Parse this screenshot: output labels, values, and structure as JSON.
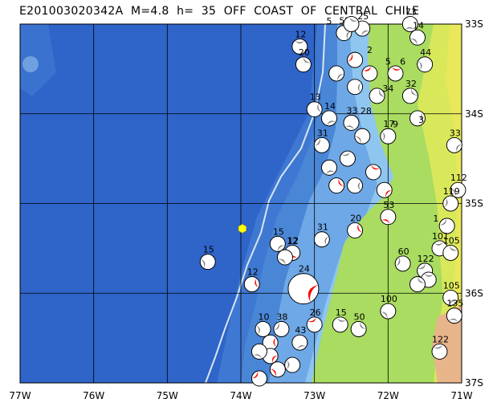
{
  "header": {
    "title": "E201003020342A  M=4.8  h=  35  OFF  COAST  OF  CENTRAL  CHILE"
  },
  "axes": {
    "lon_labels": [
      "77W",
      "76W",
      "75W",
      "74W",
      "73W",
      "72W",
      "71W"
    ],
    "lat_labels": [
      "33S",
      "34S",
      "35S",
      "36S",
      "37S"
    ]
  },
  "colors": {
    "deep_ocean": "#2f64c8",
    "shelf": "#4a86d6",
    "shallow": "#8ec6ef",
    "coast_lowland": "#a9dc60",
    "highland": "#e8e85a",
    "mountain": "#e8b48a",
    "compression": "#ff0000",
    "mechanism_alt": "#808080",
    "epicenter": "#ffff00",
    "trench_line": "#d8e4f4"
  },
  "epicenter": {
    "lon": -73.98,
    "lat": -35.28,
    "depth": "35"
  },
  "events": [
    {
      "lon": -73.2,
      "lat": -33.25,
      "depth": "12",
      "fill": "gray"
    },
    {
      "lon": -73.15,
      "lat": -33.45,
      "depth": "20",
      "fill": "gray"
    },
    {
      "lon": -73.0,
      "lat": -33.95,
      "depth": "13",
      "fill": "gray"
    },
    {
      "lon": -72.6,
      "lat": -33.1,
      "depth": "52",
      "fill": "gray"
    },
    {
      "lon": -72.35,
      "lat": -33.05,
      "depth": "25",
      "fill": "gray"
    },
    {
      "lon": -71.7,
      "lat": -33.0,
      "depth": "73",
      "fill": "gray"
    },
    {
      "lon": -71.6,
      "lat": -33.15,
      "depth": "14",
      "fill": "gray"
    },
    {
      "lon": -71.5,
      "lat": -33.45,
      "depth": "44",
      "fill": "gray"
    },
    {
      "lon": -72.45,
      "lat": -33.4,
      "depth": "",
      "fill": "red"
    },
    {
      "lon": -72.25,
      "lat": -33.55,
      "depth": "",
      "fill": "red"
    },
    {
      "lon": -71.9,
      "lat": -33.55,
      "depth": "",
      "fill": "red"
    },
    {
      "lon": -71.7,
      "lat": -33.8,
      "depth": "32",
      "fill": "gray"
    },
    {
      "lon": -71.6,
      "lat": -34.05,
      "depth": "",
      "fill": "gray"
    },
    {
      "lon": -71.1,
      "lat": -34.35,
      "depth": "33",
      "fill": "gray"
    },
    {
      "lon": -72.8,
      "lat": -34.05,
      "depth": "14",
      "fill": "gray"
    },
    {
      "lon": -72.5,
      "lat": -34.1,
      "depth": "33",
      "fill": "gray"
    },
    {
      "lon": -72.35,
      "lat": -34.25,
      "depth": "",
      "fill": "gray"
    },
    {
      "lon": -72.0,
      "lat": -34.25,
      "depth": "17",
      "fill": "gray"
    },
    {
      "lon": -72.9,
      "lat": -34.35,
      "depth": "31",
      "fill": "gray"
    },
    {
      "lon": -72.55,
      "lat": -34.5,
      "depth": "",
      "fill": "gray"
    },
    {
      "lon": -72.2,
      "lat": -34.65,
      "depth": "",
      "fill": "red"
    },
    {
      "lon": -72.7,
      "lat": -34.8,
      "depth": "",
      "fill": "red"
    },
    {
      "lon": -72.45,
      "lat": -34.8,
      "depth": "",
      "fill": "gray"
    },
    {
      "lon": -72.05,
      "lat": -34.85,
      "depth": "",
      "fill": "red"
    },
    {
      "lon": -72.8,
      "lat": -34.6,
      "depth": "",
      "fill": "gray"
    },
    {
      "lon": -72.0,
      "lat": -35.15,
      "depth": "53",
      "fill": "red"
    },
    {
      "lon": -71.05,
      "lat": -34.85,
      "depth": "112",
      "fill": "gray"
    },
    {
      "lon": -71.15,
      "lat": -35.0,
      "depth": "119",
      "fill": "gray"
    },
    {
      "lon": -71.2,
      "lat": -35.25,
      "depth": "",
      "fill": "gray"
    },
    {
      "lon": -71.3,
      "lat": -35.5,
      "depth": "101",
      "fill": "gray"
    },
    {
      "lon": -71.15,
      "lat": -35.55,
      "depth": "105",
      "fill": "gray"
    },
    {
      "lon": -72.45,
      "lat": -35.3,
      "depth": "20",
      "fill": "red"
    },
    {
      "lon": -72.9,
      "lat": -35.4,
      "depth": "31",
      "fill": "gray"
    },
    {
      "lon": -73.5,
      "lat": -35.45,
      "depth": "15",
      "fill": "gray"
    },
    {
      "lon": -73.3,
      "lat": -35.55,
      "depth": "12",
      "fill": "red"
    },
    {
      "lon": -73.4,
      "lat": -35.6,
      "depth": "",
      "fill": "gray"
    },
    {
      "lon": -74.45,
      "lat": -35.65,
      "depth": "15",
      "fill": "gray"
    },
    {
      "lon": -71.8,
      "lat": -35.67,
      "depth": "60",
      "fill": "gray"
    },
    {
      "lon": -71.5,
      "lat": -35.75,
      "depth": "122",
      "fill": "gray"
    },
    {
      "lon": -71.45,
      "lat": -35.85,
      "depth": "",
      "fill": "gray"
    },
    {
      "lon": -71.6,
      "lat": -35.9,
      "depth": "",
      "fill": "gray"
    },
    {
      "lon": -73.85,
      "lat": -35.9,
      "depth": "12",
      "fill": "red"
    },
    {
      "lon": -73.15,
      "lat": -35.95,
      "depth": "24",
      "fill": "red",
      "big": true
    },
    {
      "lon": -71.15,
      "lat": -36.05,
      "depth": "105",
      "fill": "gray"
    },
    {
      "lon": -71.1,
      "lat": -36.25,
      "depth": "135",
      "fill": "gray"
    },
    {
      "lon": -72.0,
      "lat": -36.2,
      "depth": "100",
      "fill": "gray"
    },
    {
      "lon": -73.7,
      "lat": -36.4,
      "depth": "10",
      "fill": "gray"
    },
    {
      "lon": -73.45,
      "lat": -36.4,
      "depth": "38",
      "fill": "gray"
    },
    {
      "lon": -73.0,
      "lat": -36.35,
      "depth": "26",
      "fill": "red"
    },
    {
      "lon": -72.65,
      "lat": -36.35,
      "depth": "15",
      "fill": "gray"
    },
    {
      "lon": -72.4,
      "lat": -36.4,
      "depth": "50",
      "fill": "gray"
    },
    {
      "lon": -73.6,
      "lat": -36.55,
      "depth": "",
      "fill": "red"
    },
    {
      "lon": -73.6,
      "lat": -36.7,
      "depth": "",
      "fill": "red"
    },
    {
      "lon": -73.2,
      "lat": -36.55,
      "depth": "43",
      "fill": "gray"
    },
    {
      "lon": -73.75,
      "lat": -36.65,
      "depth": "",
      "fill": "gray"
    },
    {
      "lon": -73.5,
      "lat": -36.85,
      "depth": "",
      "fill": "red"
    },
    {
      "lon": -73.3,
      "lat": -36.8,
      "depth": "",
      "fill": "gray"
    },
    {
      "lon": -73.75,
      "lat": -36.95,
      "depth": "",
      "fill": "red"
    },
    {
      "lon": -71.3,
      "lat": -36.65,
      "depth": "122",
      "fill": "gray"
    },
    {
      "lon": -72.5,
      "lat": -33.0,
      "depth": "",
      "fill": "gray"
    },
    {
      "lon": -72.15,
      "lat": -33.8,
      "depth": "",
      "fill": "gray"
    },
    {
      "lon": -72.45,
      "lat": -33.7,
      "depth": "",
      "fill": "gray"
    },
    {
      "lon": -72.7,
      "lat": -33.55,
      "depth": "",
      "fill": "gray"
    }
  ],
  "map_labels": [
    {
      "text": "5",
      "lon": -72.8,
      "lat": -33.0
    },
    {
      "text": "2",
      "lon": -72.25,
      "lat": -33.32
    },
    {
      "text": "5",
      "lon": -72.0,
      "lat": -33.45
    },
    {
      "text": "6",
      "lon": -71.8,
      "lat": -33.45
    },
    {
      "text": "34",
      "lon": -72.0,
      "lat": -33.75
    },
    {
      "text": "28",
      "lon": -72.3,
      "lat": -34.0
    },
    {
      "text": "9",
      "lon": -71.9,
      "lat": -34.15
    },
    {
      "text": "3",
      "lon": -71.55,
      "lat": -34.1
    },
    {
      "text": "1",
      "lon": -71.35,
      "lat": -35.2
    },
    {
      "text": "12",
      "lon": -73.3,
      "lat": -35.45
    }
  ]
}
